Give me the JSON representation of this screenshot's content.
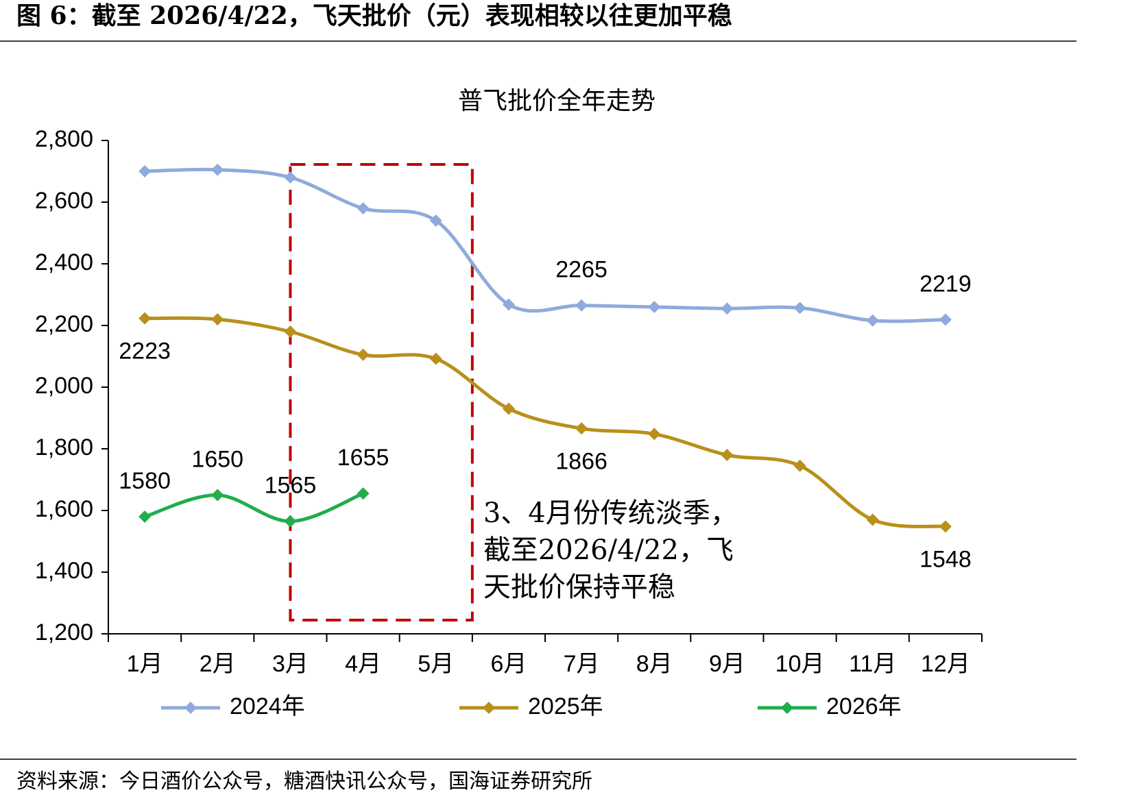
{
  "header": {
    "title": "图 6：截至 2026/4/22，飞天批价（元）表现相较以往更加平稳"
  },
  "source": "资料来源：今日酒价公众号，糖酒快讯公众号，国海证券研究所",
  "chart_data": {
    "type": "line",
    "title": "普飞批价全年走势",
    "categories": [
      "1月",
      "2月",
      "3月",
      "4月",
      "5月",
      "6月",
      "7月",
      "8月",
      "9月",
      "10月",
      "11月",
      "12月"
    ],
    "ylim": [
      1200,
      2800
    ],
    "yticks": [
      {
        "value": 1200,
        "label": "1,200"
      },
      {
        "value": 1400,
        "label": "1,400"
      },
      {
        "value": 1600,
        "label": "1,600"
      },
      {
        "value": 1800,
        "label": "1,800"
      },
      {
        "value": 2000,
        "label": "2,000"
      },
      {
        "value": 2200,
        "label": "2,200"
      },
      {
        "value": 2400,
        "label": "2,400"
      },
      {
        "value": 2600,
        "label": "2,600"
      },
      {
        "value": 2800,
        "label": "2,800"
      }
    ],
    "series": [
      {
        "name": "2024年",
        "color": "#8faadc",
        "label_position": "above",
        "values": [
          2700,
          2705,
          2680,
          2580,
          2540,
          2268,
          2265,
          2260,
          2255,
          2257,
          2216,
          2219
        ],
        "value_labels": [
          null,
          null,
          null,
          null,
          null,
          null,
          "2265",
          null,
          null,
          null,
          null,
          "2219"
        ]
      },
      {
        "name": "2025年",
        "color": "#b8901a",
        "label_position": "below",
        "values": [
          2223,
          2220,
          2180,
          2105,
          2092,
          1930,
          1866,
          1848,
          1780,
          1745,
          1570,
          1548
        ],
        "value_labels": [
          "2223",
          null,
          null,
          null,
          null,
          null,
          "1866",
          null,
          null,
          null,
          null,
          "1548"
        ]
      },
      {
        "name": "2026年",
        "color": "#1fae4b",
        "label_position": "above",
        "values": [
          1580,
          1650,
          1565,
          1655,
          null,
          null,
          null,
          null,
          null,
          null,
          null,
          null
        ],
        "value_labels": [
          "1580",
          "1650",
          "1565",
          "1655",
          null,
          null,
          null,
          null,
          null,
          null,
          null,
          null
        ]
      }
    ],
    "annotation": [
      "3、4月份传统淡季，",
      "截至2026/4/22，飞",
      "天批价保持平稳"
    ],
    "annotation_color": "#c00000"
  }
}
